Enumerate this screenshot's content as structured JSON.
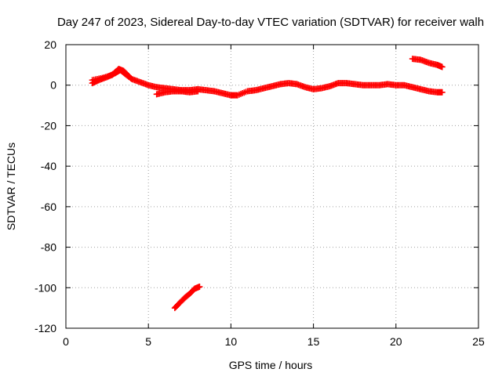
{
  "chart_data": {
    "type": "scatter",
    "title": "Day 247 of 2023, Sidereal Day-to-day VTEC variation (SDTVAR) for receiver walh",
    "xlabel": "GPS time / hours",
    "ylabel": "SDTVAR / TECUs",
    "xlim": [
      0,
      25
    ],
    "ylim": [
      -120,
      20
    ],
    "xticks": [
      0,
      5,
      10,
      15,
      20,
      25
    ],
    "yticks": [
      -120,
      -100,
      -80,
      -60,
      -40,
      -20,
      0,
      20
    ],
    "grid": true,
    "marker": "+",
    "color": "#ff0000",
    "series": [
      {
        "name": "main trace",
        "points": [
          [
            1.6,
            1.0
          ],
          [
            2.0,
            2.5
          ],
          [
            2.5,
            4.0
          ],
          [
            3.0,
            6.0
          ],
          [
            3.3,
            7.5
          ],
          [
            3.6,
            5.5
          ],
          [
            4.0,
            3.0
          ],
          [
            4.5,
            1.5
          ],
          [
            5.0,
            0.0
          ],
          [
            5.5,
            -1.0
          ],
          [
            6.0,
            -1.5
          ],
          [
            6.5,
            -2.0
          ],
          [
            7.0,
            -2.5
          ],
          [
            7.5,
            -2.5
          ],
          [
            8.0,
            -2.0
          ],
          [
            8.5,
            -2.5
          ],
          [
            9.0,
            -3.0
          ],
          [
            9.5,
            -4.0
          ],
          [
            10.0,
            -5.0
          ],
          [
            10.4,
            -5.0
          ],
          [
            11.0,
            -3.0
          ],
          [
            11.5,
            -2.5
          ],
          [
            12.0,
            -1.5
          ],
          [
            12.5,
            -0.5
          ],
          [
            13.0,
            0.5
          ],
          [
            13.5,
            1.0
          ],
          [
            14.0,
            0.5
          ],
          [
            14.5,
            -1.0
          ],
          [
            15.0,
            -2.0
          ],
          [
            15.5,
            -1.5
          ],
          [
            16.0,
            -0.5
          ],
          [
            16.5,
            1.0
          ],
          [
            17.0,
            1.0
          ],
          [
            17.5,
            0.5
          ],
          [
            18.0,
            0.0
          ],
          [
            18.5,
            0.0
          ],
          [
            19.0,
            0.0
          ],
          [
            19.5,
            0.5
          ],
          [
            20.0,
            0.0
          ],
          [
            20.5,
            0.0
          ],
          [
            21.0,
            -1.0
          ],
          [
            21.5,
            -2.0
          ],
          [
            22.0,
            -3.0
          ],
          [
            22.5,
            -3.5
          ],
          [
            22.8,
            -3.5
          ]
        ]
      },
      {
        "name": "lower branch",
        "points": [
          [
            5.5,
            -4.5
          ],
          [
            6.0,
            -3.5
          ],
          [
            6.5,
            -3.0
          ],
          [
            7.0,
            -3.0
          ],
          [
            7.5,
            -3.5
          ],
          [
            8.0,
            -3.0
          ]
        ]
      },
      {
        "name": "upper branch",
        "points": [
          [
            1.6,
            2.5
          ],
          [
            2.2,
            3.5
          ],
          [
            2.8,
            5.0
          ],
          [
            3.2,
            8.0
          ],
          [
            3.5,
            7.0
          ],
          [
            3.8,
            4.5
          ]
        ]
      },
      {
        "name": "late segment",
        "points": [
          [
            21.0,
            13.0
          ],
          [
            21.5,
            12.5
          ],
          [
            22.0,
            11.0
          ],
          [
            22.5,
            10.0
          ],
          [
            22.8,
            9.0
          ]
        ]
      },
      {
        "name": "outlier segment",
        "points": [
          [
            6.6,
            -110.0
          ],
          [
            6.9,
            -107.5
          ],
          [
            7.2,
            -105.0
          ],
          [
            7.5,
            -103.0
          ],
          [
            7.8,
            -100.5
          ],
          [
            8.1,
            -99.5
          ]
        ]
      }
    ]
  }
}
